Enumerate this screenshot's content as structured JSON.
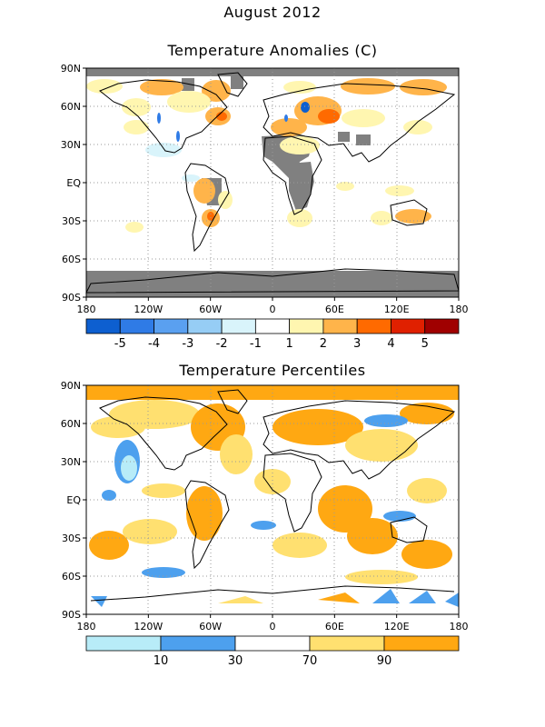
{
  "titles": {
    "line1": "August 2012",
    "line2": "Temperature Anomalies (C)",
    "panel2": "Temperature Percentiles"
  },
  "map_axes": {
    "lon_labels": [
      "180",
      "120W",
      "60W",
      "0",
      "60E",
      "120E",
      "180"
    ],
    "lat_labels": [
      "90N",
      "60N",
      "30N",
      "EQ",
      "30S",
      "60S",
      "90S"
    ]
  },
  "anomaly_colorbar": {
    "colors": [
      "#0d5fd0",
      "#2f7be6",
      "#5aa0f0",
      "#96cdf5",
      "#d9f4fb",
      "#ffffff",
      "#fff6b0",
      "#ffb44a",
      "#ff6a00",
      "#e02000",
      "#a00000"
    ],
    "labels": [
      "-5",
      "-4",
      "-3",
      "-2",
      "-1",
      "1",
      "2",
      "3",
      "4",
      "5"
    ]
  },
  "percentile_colorbar": {
    "colors": [
      "#b8ecf8",
      "#4da0ee",
      "#ffffff",
      "#ffe070",
      "#ffa812"
    ],
    "labels": [
      "10",
      "30",
      "70",
      "90"
    ]
  },
  "colors": {
    "missing": "#808080",
    "grid": "#9a9a9a",
    "coast": "#000000"
  }
}
